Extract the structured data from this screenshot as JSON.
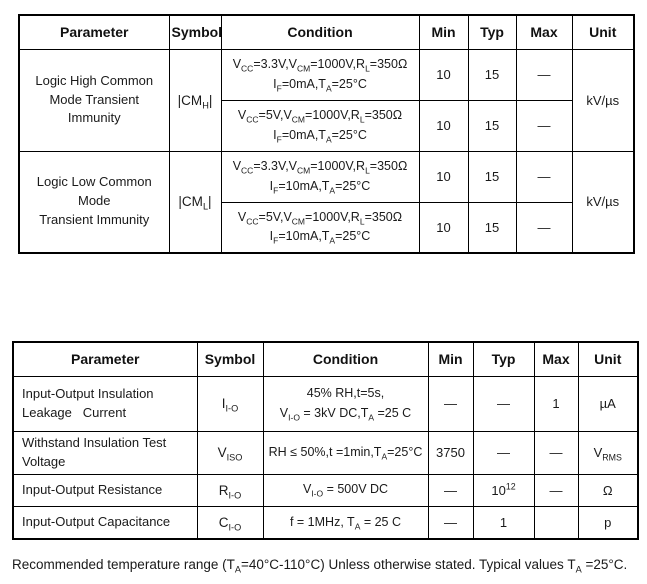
{
  "page": {
    "background": "#ffffff",
    "text_color": "#1a1a1a",
    "border_color": "#000000"
  },
  "table1": {
    "headers": [
      "Parameter",
      "Symbol",
      "Condition",
      "Min",
      "Typ",
      "Max",
      "Unit"
    ],
    "groups": [
      {
        "parameter": "Logic High Common\nMode Transient Immunity",
        "symbol": "|CM~H~|",
        "unit": "kV/µs",
        "rows": [
          {
            "condition": "V~CC~=3.3V,V~CM~=1000V,R~L~=350Ω\nI~F~=0mA,T~A~=25°C",
            "min": "10",
            "typ": "15",
            "max": "—"
          },
          {
            "condition": "V~CC~=5V,V~CM~=1000V,R~L~=350Ω\nI~F~=0mA,T~A~=25°C",
            "min": "10",
            "typ": "15",
            "max": "—"
          }
        ]
      },
      {
        "parameter": "Logic Low Common Mode\nTransient Immunity",
        "symbol": "|CM~L~|",
        "unit": "kV/µs",
        "rows": [
          {
            "condition": "V~CC~=3.3V,V~CM~=1000V,R~L~=350Ω\nI~F~=10mA,T~A~=25°C",
            "min": "10",
            "typ": "15",
            "max": "—"
          },
          {
            "condition": "V~CC~=5V,V~CM~=1000V,R~L~=350Ω\nI~F~=10mA,T~A~=25°C",
            "min": "10",
            "typ": "15",
            "max": "—"
          }
        ]
      }
    ]
  },
  "table2": {
    "headers": [
      "Parameter",
      "Symbol",
      "Condition",
      "Min",
      "Typ",
      "Max",
      "Unit"
    ],
    "rows": [
      {
        "parameter": "Input-Output Insulation\nLeakage   Current",
        "symbol": "I~I-O~",
        "condition": "45% RH,t=5s,\nV~I-O~ = 3kV DC,T~A~ =25 C",
        "min": "—",
        "typ": "—",
        "max": "1",
        "unit": "µA"
      },
      {
        "parameter": "Withstand Insulation Test\nVoltage",
        "symbol": "V~ISO~",
        "condition": "RH ≤ 50%,t =1min,T~A~=25°C",
        "min": "3750",
        "typ": "—",
        "max": "—",
        "unit": "V~RMS~"
      },
      {
        "parameter": "Input-Output Resistance",
        "symbol": "R~I-O~",
        "condition": "V~I-O~ = 500V DC",
        "min": "—",
        "typ": "10^12^",
        "max": "—",
        "unit": "Ω"
      },
      {
        "parameter": "Input-Output Capacitance",
        "symbol": "C~I-O~",
        "condition": "f = 1MHz, T~A~ = 25 C",
        "min": "—",
        "typ": "1",
        "max": "",
        "unit": "p"
      }
    ]
  },
  "footer": {
    "note": "Recommended temperature range (T~A~=40°C-110°C) Unless otherwise stated. Typical values T~A~ =25°C."
  }
}
